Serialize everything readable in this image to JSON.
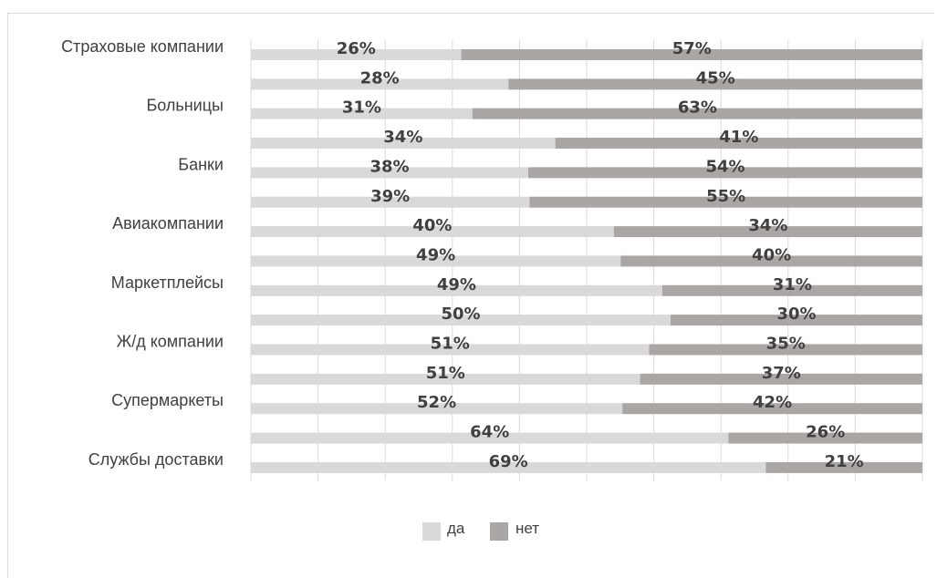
{
  "chart_data": {
    "type": "bar",
    "orientation": "horizontal",
    "stacked": "100%",
    "categories": [
      "Страховые компании",
      "",
      "Больницы",
      "",
      "Банки",
      "",
      "Авиакомпании",
      "",
      "Маркетплейсы",
      "",
      "Ж/д компании",
      "",
      "Супермаркеты",
      "",
      "Службы доставки"
    ],
    "series": [
      {
        "name": "да",
        "values": [
          26,
          28,
          31,
          34,
          38,
          39,
          40,
          49,
          49,
          50,
          51,
          51,
          52,
          64,
          69
        ],
        "color": "#d9d9d9"
      },
      {
        "name": "нет",
        "values": [
          57,
          45,
          63,
          41,
          54,
          55,
          34,
          40,
          31,
          30,
          35,
          37,
          42,
          26,
          21
        ],
        "color": "#aba6a6"
      }
    ],
    "data_labels": {
      "да": [
        "26%",
        "28%",
        "31%",
        "34%",
        "38%",
        "39%",
        "40%",
        "49%",
        "49%",
        "50%",
        "51%",
        "51%",
        "52%",
        "64%",
        "69%"
      ],
      "нет": [
        "57%",
        "45%",
        "63%",
        "41%",
        "54%",
        "55%",
        "34%",
        "40%",
        "31%",
        "30%",
        "35%",
        "37%",
        "42%",
        "26%",
        "21%"
      ]
    },
    "xlim": [
      0,
      100
    ],
    "grid": true,
    "legend": "bottom",
    "title": "",
    "xlabel": "",
    "ylabel": ""
  }
}
